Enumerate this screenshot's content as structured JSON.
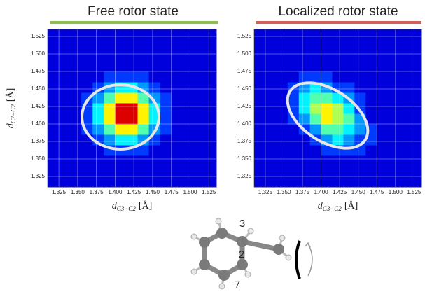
{
  "chart_data": [
    {
      "type": "heatmap",
      "title": "Free rotor state",
      "title_bar_color": "#8dbd4c",
      "xlabel": {
        "symbol": "d",
        "subscript": "C3−C2",
        "unit": "[Å]"
      },
      "ylabel": {
        "symbol": "d",
        "subscript": "C7−C2",
        "unit": "[Å]"
      },
      "colormap": "jet",
      "zlim": [
        -1,
        10
      ],
      "grid": true,
      "xlim": [
        1.31,
        1.535
      ],
      "ylim": [
        1.31,
        1.535
      ],
      "xticks": [
        1.325,
        {
          "value": 1.35,
          "label": "1.350"
        },
        1.375,
        {
          "value": 1.4,
          "label": "1.400"
        },
        1.425,
        {
          "value": 1.45,
          "label": "1.450"
        },
        1.475,
        {
          "value": 1.5,
          "label": "1.500"
        },
        1.525
      ],
      "yticks": [
        1.325,
        {
          "value": 1.35,
          "label": "1.350"
        },
        1.375,
        {
          "value": 1.4,
          "label": "1.400"
        },
        1.425,
        {
          "value": 1.45,
          "label": "1.450"
        },
        1.475,
        {
          "value": 1.5,
          "label": "1.500"
        },
        1.525
      ],
      "z": [
        [
          0,
          0,
          0,
          0,
          0,
          0,
          0,
          0,
          0,
          0,
          0,
          0,
          0,
          0,
          0
        ],
        [
          0,
          0,
          0,
          0,
          0,
          0,
          0,
          0,
          0,
          0,
          0,
          0,
          0,
          0,
          0
        ],
        [
          0,
          0,
          0,
          0,
          0,
          0,
          0,
          0,
          0,
          0,
          0,
          0,
          0,
          0,
          0
        ],
        [
          0,
          0,
          0,
          0,
          0,
          1,
          1,
          1,
          1,
          0,
          0,
          0,
          0,
          0,
          0
        ],
        [
          0,
          0,
          0,
          0,
          1,
          2,
          3,
          3,
          2,
          1,
          0,
          0,
          0,
          0,
          0
        ],
        [
          0,
          0,
          0,
          1,
          2,
          4,
          6,
          6,
          4,
          2,
          1,
          0,
          0,
          0,
          0
        ],
        [
          0,
          0,
          0,
          1,
          3,
          6,
          9,
          9,
          6,
          3,
          1,
          0,
          0,
          0,
          0
        ],
        [
          0,
          0,
          0,
          1,
          3,
          6,
          9,
          9,
          6,
          3,
          1,
          0,
          0,
          0,
          0
        ],
        [
          0,
          0,
          0,
          1,
          2,
          4,
          6,
          6,
          4,
          2,
          1,
          0,
          0,
          0,
          0
        ],
        [
          0,
          0,
          0,
          0,
          1,
          2,
          3,
          3,
          2,
          1,
          0,
          0,
          0,
          0,
          0
        ],
        [
          0,
          0,
          0,
          0,
          0,
          1,
          1,
          1,
          1,
          0,
          0,
          0,
          0,
          0,
          0
        ],
        [
          0,
          0,
          0,
          0,
          0,
          0,
          0,
          0,
          0,
          0,
          0,
          0,
          0,
          0,
          0
        ],
        [
          0,
          0,
          0,
          0,
          0,
          0,
          0,
          0,
          0,
          0,
          0,
          0,
          0,
          0,
          0
        ],
        [
          0,
          0,
          0,
          0,
          0,
          0,
          0,
          0,
          0,
          0,
          0,
          0,
          0,
          0,
          0
        ],
        [
          0,
          0,
          0,
          0,
          0,
          0,
          0,
          0,
          0,
          0,
          0,
          0,
          0,
          0,
          0
        ]
      ]
    },
    {
      "type": "heatmap",
      "title": "Localized rotor state",
      "title_bar_color": "#d25f58",
      "xlabel": {
        "symbol": "d",
        "subscript": "C3−C2",
        "unit": "[Å]"
      },
      "colormap": "jet",
      "zlim": [
        -1,
        10
      ],
      "grid": true,
      "xlim": [
        1.31,
        1.535
      ],
      "ylim": [
        1.31,
        1.535
      ],
      "xticks": [
        1.325,
        {
          "value": 1.35,
          "label": "1.350"
        },
        1.375,
        {
          "value": 1.4,
          "label": "1.400"
        },
        1.425,
        {
          "value": 1.45,
          "label": "1.450"
        },
        1.475,
        {
          "value": 1.5,
          "label": "1.500"
        },
        1.525
      ],
      "yticks": [
        1.325,
        {
          "value": 1.35,
          "label": "1.350"
        },
        1.375,
        {
          "value": 1.4,
          "label": "1.400"
        },
        1.425,
        {
          "value": 1.45,
          "label": "1.450"
        },
        1.475,
        {
          "value": 1.5,
          "label": "1.500"
        },
        1.525
      ],
      "z": [
        [
          0,
          0,
          0,
          0,
          0,
          0,
          0,
          0,
          0,
          0,
          0,
          0,
          0,
          0,
          0
        ],
        [
          0,
          0,
          0,
          0,
          0,
          0,
          0,
          0,
          0,
          0,
          0,
          0,
          0,
          0,
          0
        ],
        [
          0,
          0,
          0,
          0,
          0,
          0,
          0,
          0,
          0,
          0,
          0,
          0,
          0,
          0,
          0
        ],
        [
          0,
          0,
          0,
          0,
          0,
          0,
          1,
          1,
          1,
          1,
          0,
          0,
          0,
          0,
          0
        ],
        [
          0,
          0,
          0,
          0,
          0,
          1,
          2,
          3,
          2,
          1,
          1,
          0,
          0,
          0,
          0
        ],
        [
          0,
          0,
          0,
          0,
          1,
          2,
          4,
          4,
          3,
          2,
          1,
          0,
          0,
          0,
          0
        ],
        [
          0,
          0,
          0,
          1,
          2,
          4,
          6,
          5,
          4,
          2,
          0,
          0,
          0,
          0,
          0
        ],
        [
          0,
          0,
          0,
          1,
          3,
          5,
          6,
          5,
          3,
          1,
          0,
          0,
          0,
          0,
          0
        ],
        [
          0,
          0,
          0,
          1,
          3,
          4,
          4,
          3,
          2,
          1,
          0,
          0,
          0,
          0,
          0
        ],
        [
          0,
          0,
          0,
          1,
          2,
          3,
          2,
          1,
          1,
          0,
          0,
          0,
          0,
          0,
          0
        ],
        [
          0,
          0,
          0,
          0,
          1,
          1,
          1,
          0,
          0,
          0,
          0,
          0,
          0,
          0,
          0
        ],
        [
          0,
          0,
          0,
          0,
          0,
          0,
          0,
          0,
          0,
          0,
          0,
          0,
          0,
          0,
          0
        ],
        [
          0,
          0,
          0,
          0,
          0,
          0,
          0,
          0,
          0,
          0,
          0,
          0,
          0,
          0,
          0
        ],
        [
          0,
          0,
          0,
          0,
          0,
          0,
          0,
          0,
          0,
          0,
          0,
          0,
          0,
          0,
          0
        ],
        [
          0,
          0,
          0,
          0,
          0,
          0,
          0,
          0,
          0,
          0,
          0,
          0,
          0,
          0,
          0
        ]
      ]
    }
  ],
  "molecule": {
    "labels": [
      "3",
      "2",
      "7"
    ]
  }
}
